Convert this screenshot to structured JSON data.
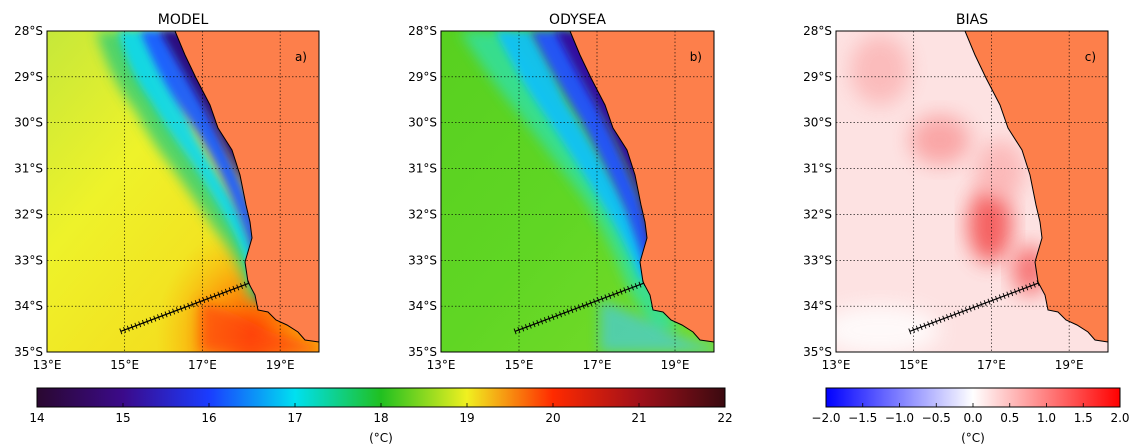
{
  "panels": [
    {
      "title": "MODEL",
      "label": "a)"
    },
    {
      "title": "ODYSEA",
      "label": "b)"
    },
    {
      "title": "BIAS",
      "label": "c)"
    }
  ],
  "lat_ticks": [
    "28°S",
    "29°S",
    "30°S",
    "31°S",
    "32°S",
    "33°S",
    "34°S",
    "35°S"
  ],
  "lon_ticks": [
    "13°E",
    "15°E",
    "17°E",
    "19°E"
  ],
  "lat_range": [
    -35,
    -28
  ],
  "lon_range": [
    13,
    20
  ],
  "transect": {
    "start": {
      "lon": 14.9,
      "lat": -34.55
    },
    "end": {
      "lon": 18.2,
      "lat": -33.5
    }
  },
  "colorbars": [
    {
      "name": "sst",
      "min": 14,
      "max": 22,
      "ticks": [
        "14",
        "15",
        "16",
        "17",
        "18",
        "19",
        "20",
        "21",
        "22"
      ],
      "unit": "(°C)"
    },
    {
      "name": "bias",
      "min": -2.0,
      "max": 2.0,
      "ticks": [
        "−2.0",
        "−1.5",
        "−1.0",
        "−0.5",
        "0.0",
        "0.5",
        "1.0",
        "1.5",
        "2.0"
      ],
      "unit": "(°C)"
    }
  ],
  "colors": {
    "land": "#fd7f4b",
    "coast": "#000000",
    "grid": "#000000"
  }
}
